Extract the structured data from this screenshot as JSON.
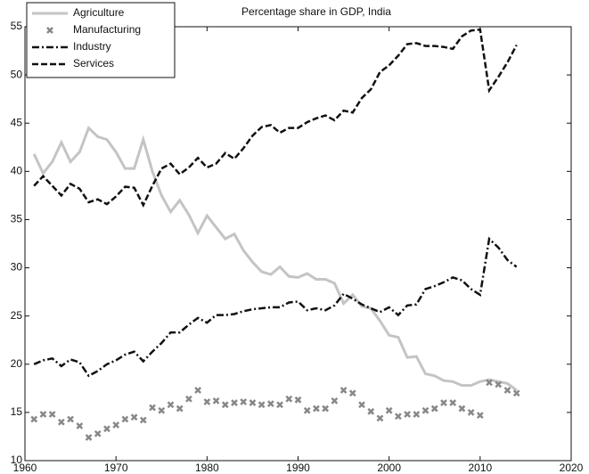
{
  "chart_data": {
    "type": "line",
    "title": "Percentage share in GDP, India",
    "x": [
      1961,
      1962,
      1963,
      1964,
      1965,
      1966,
      1967,
      1968,
      1969,
      1970,
      1971,
      1972,
      1973,
      1974,
      1975,
      1976,
      1977,
      1978,
      1979,
      1980,
      1981,
      1982,
      1983,
      1984,
      1985,
      1986,
      1987,
      1988,
      1989,
      1990,
      1991,
      1992,
      1993,
      1994,
      1995,
      1996,
      1997,
      1998,
      1999,
      2000,
      2001,
      2002,
      2003,
      2004,
      2005,
      2006,
      2007,
      2008,
      2009,
      2010,
      2011,
      2012,
      2013,
      2014
    ],
    "series": [
      {
        "name": "Agriculture",
        "color": "#c4c4c4",
        "style": "solid",
        "values": [
          41.8,
          39.8,
          41,
          43,
          41,
          42,
          44.5,
          43.6,
          43.3,
          42,
          40.3,
          40.3,
          43.3,
          40,
          37.5,
          35.8,
          37,
          35.5,
          33.6,
          35.4,
          34.2,
          33,
          33.5,
          31.8,
          30.6,
          29.6,
          29.3,
          30.1,
          29.1,
          29,
          29.4,
          28.8,
          28.8,
          28.4,
          26.3,
          27.2,
          26,
          25.8,
          24.5,
          23,
          22.8,
          20.7,
          20.8,
          19,
          18.8,
          18.3,
          18.2,
          17.8,
          17.8,
          18.2,
          18.4,
          18.2,
          18,
          17.3
        ]
      },
      {
        "name": "Manufacturing",
        "color": "#888888",
        "style": "marker",
        "values": [
          14.3,
          14.8,
          14.8,
          14,
          14.3,
          13.6,
          12.4,
          12.8,
          13.3,
          13.7,
          14.3,
          14.5,
          14.2,
          15.5,
          15.2,
          15.8,
          15.4,
          16.4,
          17.3,
          16.1,
          16.2,
          15.8,
          16,
          16.1,
          16,
          15.8,
          15.9,
          15.8,
          16.4,
          16.3,
          15.2,
          15.4,
          15.4,
          16.2,
          17.3,
          17,
          15.8,
          15.1,
          14.4,
          15.2,
          14.6,
          14.8,
          14.8,
          15.2,
          15.4,
          16,
          16,
          15.4,
          15,
          14.7,
          18.1,
          17.9,
          17.3,
          17
        ]
      },
      {
        "name": "Industry",
        "color": "#111111",
        "style": "dashdot",
        "values": [
          20,
          20.4,
          20.6,
          19.8,
          20.5,
          20.2,
          18.8,
          19.3,
          20,
          20.4,
          21,
          21.3,
          20.3,
          21.3,
          22.2,
          23.3,
          23.3,
          24.1,
          24.8,
          24.3,
          25.1,
          25.1,
          25.2,
          25.5,
          25.7,
          25.8,
          25.9,
          25.9,
          26.4,
          26.5,
          25.6,
          25.8,
          25.6,
          26.1,
          27.3,
          26.8,
          26.2,
          25.8,
          25.4,
          25.9,
          25.1,
          26.1,
          26.2,
          27.8,
          28.1,
          28.5,
          29,
          28.7,
          27.8,
          27.2,
          33,
          32.1,
          30.8,
          30.1
        ]
      },
      {
        "name": "Services",
        "color": "#111111",
        "style": "dashed",
        "values": [
          38.5,
          39.5,
          38.5,
          37.5,
          38.7,
          38.2,
          36.8,
          37.1,
          36.6,
          37.4,
          38.4,
          38.3,
          36.5,
          38.5,
          40.3,
          40.8,
          39.7,
          40.4,
          41.4,
          40.4,
          40.8,
          41.9,
          41.3,
          42.4,
          43.7,
          44.6,
          44.8,
          44,
          44.5,
          44.5,
          45.1,
          45.5,
          45.8,
          45.3,
          46.3,
          46.1,
          47.6,
          48.5,
          50.3,
          51,
          52,
          53.2,
          53.3,
          53,
          53,
          52.9,
          52.7,
          54,
          54.6,
          54.7,
          48.4,
          49.8,
          51.3,
          53.1
        ]
      }
    ],
    "xlim": [
      1960,
      2020
    ],
    "xticks": [
      1960,
      1970,
      1980,
      1990,
      2000,
      2010,
      2020
    ],
    "ylim": [
      10,
      55
    ],
    "yticks": [
      10,
      15,
      20,
      25,
      30,
      35,
      40,
      45,
      50,
      55
    ],
    "legend": "upper left",
    "grid": false
  }
}
